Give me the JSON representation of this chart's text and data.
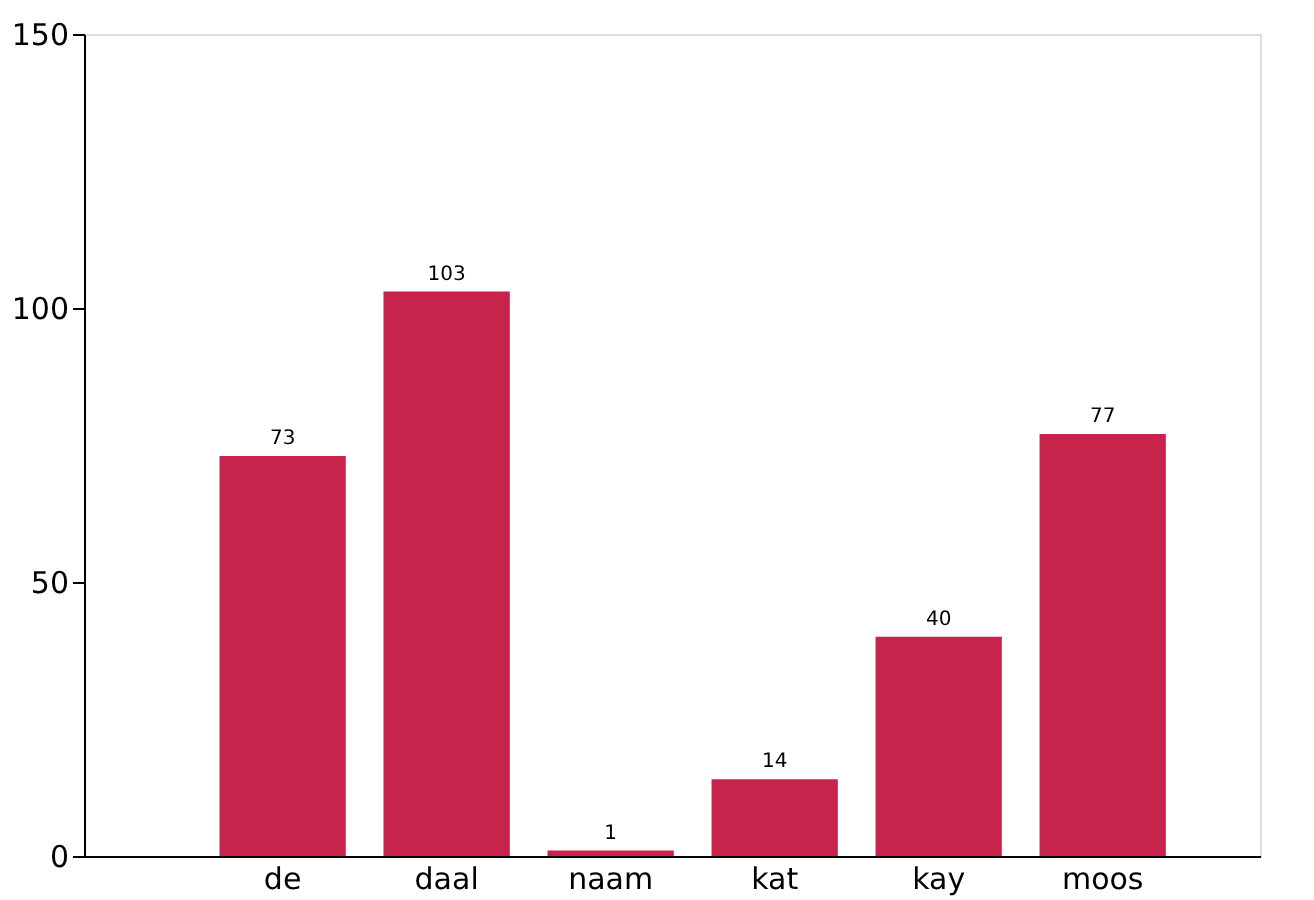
{
  "chart_data": {
    "type": "bar",
    "categories": [
      "de",
      "daal",
      "naam",
      "kat",
      "kay",
      "moos"
    ],
    "values": [
      73,
      103,
      1,
      14,
      40,
      77
    ],
    "color": "#c8234a",
    "ylim": [
      0,
      150
    ],
    "yticks": [
      0,
      50,
      100,
      150
    ],
    "grid": false,
    "data_labels": true
  }
}
